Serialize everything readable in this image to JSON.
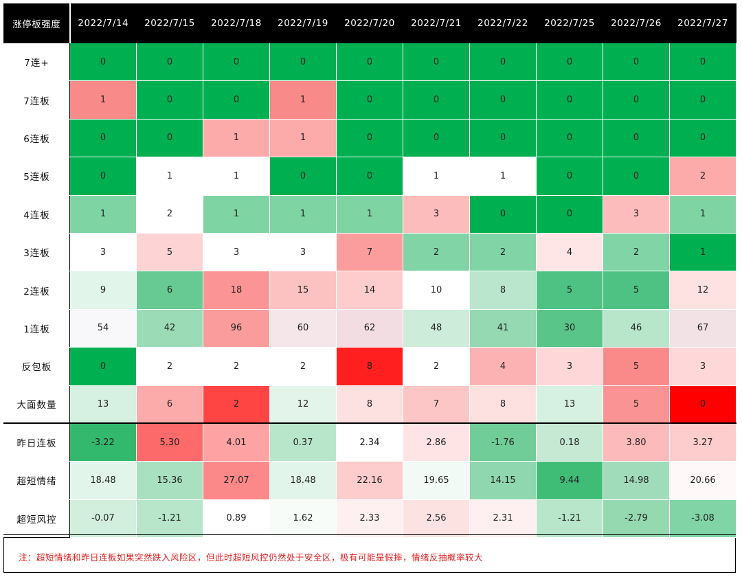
{
  "header": {
    "corner": "涨停板强度",
    "dates": [
      "2022/7/14",
      "2022/7/15",
      "2022/7/18",
      "2022/7/19",
      "2022/7/20",
      "2022/7/21",
      "2022/7/22",
      "2022/7/25",
      "2022/7/26",
      "2022/7/27"
    ]
  },
  "rows": [
    {
      "label": "7连+",
      "values": [
        "0",
        "0",
        "0",
        "0",
        "0",
        "0",
        "0",
        "0",
        "0",
        "0"
      ],
      "colors": [
        "#00b050",
        "#00b050",
        "#00b050",
        "#00b050",
        "#00b050",
        "#00b050",
        "#00b050",
        "#00b050",
        "#00b050",
        "#00b050"
      ]
    },
    {
      "label": "7连板",
      "values": [
        "1",
        "0",
        "0",
        "1",
        "0",
        "0",
        "0",
        "0",
        "0",
        "0"
      ],
      "colors": [
        "#f98a8a",
        "#00b050",
        "#00b050",
        "#f98a8a",
        "#00b050",
        "#00b050",
        "#00b050",
        "#00b050",
        "#00b050",
        "#00b050"
      ]
    },
    {
      "label": "6连板",
      "values": [
        "0",
        "0",
        "1",
        "1",
        "0",
        "0",
        "0",
        "0",
        "0",
        "0"
      ],
      "colors": [
        "#00b050",
        "#00b050",
        "#fcaaaa",
        "#fcaaaa",
        "#00b050",
        "#00b050",
        "#00b050",
        "#00b050",
        "#00b050",
        "#00b050"
      ]
    },
    {
      "label": "5连板",
      "values": [
        "0",
        "1",
        "1",
        "0",
        "0",
        "1",
        "1",
        "0",
        "0",
        "2"
      ],
      "colors": [
        "#00b050",
        "#ffffff",
        "#ffffff",
        "#00b050",
        "#00b050",
        "#ffffff",
        "#ffffff",
        "#00b050",
        "#00b050",
        "#fcaaaa"
      ]
    },
    {
      "label": "4连板",
      "values": [
        "1",
        "2",
        "1",
        "1",
        "1",
        "3",
        "0",
        "0",
        "3",
        "1"
      ],
      "colors": [
        "#7fd4a4",
        "#ffffff",
        "#7fd4a4",
        "#7fd4a4",
        "#7fd4a4",
        "#fdbcbc",
        "#00b050",
        "#00b050",
        "#fdbcbc",
        "#7fd4a4"
      ]
    },
    {
      "label": "3连板",
      "values": [
        "3",
        "5",
        "3",
        "3",
        "7",
        "2",
        "2",
        "4",
        "2",
        "1"
      ],
      "colors": [
        "#ffffff",
        "#fdd3d3",
        "#ffffff",
        "#ffffff",
        "#fb9d9d",
        "#80d4a6",
        "#80d4a6",
        "#fee6e6",
        "#80d4a6",
        "#00b050"
      ]
    },
    {
      "label": "2连板",
      "values": [
        "9",
        "6",
        "18",
        "15",
        "14",
        "10",
        "8",
        "5",
        "5",
        "12"
      ],
      "colors": [
        "#e2f5ea",
        "#66ca92",
        "#fb9595",
        "#fcc2c2",
        "#fdcdcd",
        "#ffffff",
        "#b9e6cd",
        "#4ec282",
        "#4ec282",
        "#fee2e2"
      ]
    },
    {
      "label": "1连板",
      "values": [
        "54",
        "42",
        "96",
        "60",
        "62",
        "48",
        "41",
        "30",
        "46",
        "67"
      ],
      "colors": [
        "#f8f8fb",
        "#9bdcb6",
        "#fa9c9c",
        "#f4e6e9",
        "#f1dde2",
        "#cdecd9",
        "#94d9b1",
        "#59c589",
        "#b8e6cb",
        "#f2e2e5"
      ]
    },
    {
      "label": "反包板",
      "values": [
        "0",
        "2",
        "2",
        "2",
        "8",
        "2",
        "4",
        "3",
        "5",
        "3"
      ],
      "colors": [
        "#00b050",
        "#ffffff",
        "#ffffff",
        "#ffffff",
        "#ff1f1f",
        "#ffffff",
        "#fcb2b2",
        "#fed8d8",
        "#fa8a8a",
        "#fed8d8"
      ]
    },
    {
      "label": "大面数量",
      "values": [
        "13",
        "6",
        "2",
        "12",
        "8",
        "7",
        "8",
        "13",
        "5",
        "0"
      ],
      "colors": [
        "#d6f0e1",
        "#fcaaaa",
        "#ff4444",
        "#e3f5ea",
        "#fde0e0",
        "#fcc6c6",
        "#fde0e0",
        "#d6f0e1",
        "#fa9393",
        "#ff0000"
      ]
    },
    {
      "label": "昨日连板",
      "values": [
        "-3.22",
        "5.30",
        "4.01",
        "0.37",
        "2.34",
        "2.86",
        "-1.76",
        "0.18",
        "3.80",
        "3.27"
      ],
      "colors": [
        "#33b96e",
        "#fc6a6a",
        "#fda3a3",
        "#b8e6cb",
        "#ffffff",
        "#fee4e4",
        "#70cd98",
        "#c6e9d4",
        "#fdbaba",
        "#fdcdcd"
      ]
    },
    {
      "label": "超短情绪",
      "values": [
        "18.48",
        "15.36",
        "27.07",
        "18.48",
        "22.16",
        "19.65",
        "14.15",
        "9.44",
        "14.98",
        "20.66"
      ],
      "colors": [
        "#e2f5ea",
        "#a9e0c0",
        "#fb8989",
        "#e2f5ea",
        "#fdcccc",
        "#f1faf4",
        "#8fd7ae",
        "#3fbd77",
        "#a1dcba",
        "#fff8f8"
      ]
    },
    {
      "label": "超短风控",
      "values": [
        "-0.07",
        "-1.21",
        "0.89",
        "1.62",
        "2.33",
        "2.56",
        "2.31",
        "-1.21",
        "-2.79",
        "-3.08"
      ],
      "colors": [
        "#d2eedd",
        "#b8e6cb",
        "#ffffff",
        "#f8fcf9",
        "#fef0f0",
        "#fde2e2",
        "#fef0f0",
        "#b8e6cb",
        "#95d9b1",
        "#80d4a6"
      ]
    }
  ],
  "note": "注：超短情绪和昨日连板如果突然跌入风险区，但此时超短风控仍然处于安全区，极有可能是假摔，情绪反抽概率较大"
}
